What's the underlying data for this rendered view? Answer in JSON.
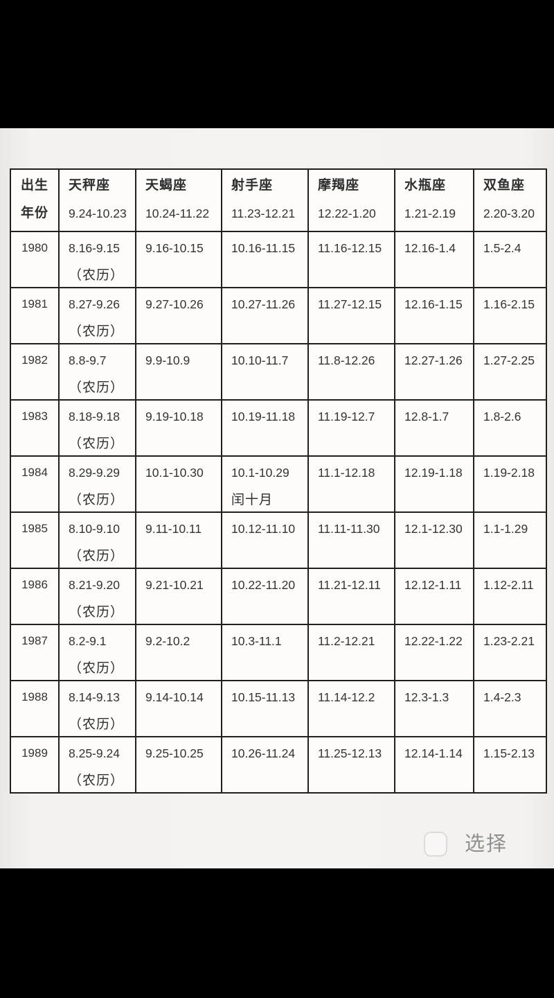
{
  "viewer": {
    "select_label": "选择"
  },
  "colors": {
    "letterbox": "#000000",
    "photo_background": "#f3f2f0",
    "table_background": "#fdfcfb",
    "table_border": "#1f1f1f",
    "text": "#2e2e2e",
    "select_text": "#8f8f8f",
    "checkbox_border": "#dddbd8"
  },
  "table": {
    "year_header_lines": [
      "出生",
      "年份"
    ],
    "columns": [
      {
        "name": "天秤座",
        "range": "9.24-10.23"
      },
      {
        "name": "天蝎座",
        "range": "10.24-11.22"
      },
      {
        "name": "射手座",
        "range": "11.23-12.21"
      },
      {
        "name": "摩羯座",
        "range": "12.22-1.20"
      },
      {
        "name": "水瓶座",
        "range": "1.21-2.19"
      },
      {
        "name": "双鱼座",
        "range": "2.20-3.20"
      }
    ],
    "rows": [
      {
        "year": "1980",
        "cells": [
          [
            "8.16-9.15",
            "（农历）"
          ],
          [
            "9.16-10.15"
          ],
          [
            "10.16-11.15"
          ],
          [
            "11.16-12.15"
          ],
          [
            "12.16-1.4"
          ],
          [
            "1.5-2.4"
          ]
        ]
      },
      {
        "year": "1981",
        "cells": [
          [
            "8.27-9.26",
            "（农历）"
          ],
          [
            "9.27-10.26"
          ],
          [
            "10.27-11.26"
          ],
          [
            "11.27-12.15"
          ],
          [
            "12.16-1.15"
          ],
          [
            "1.16-2.15"
          ]
        ]
      },
      {
        "year": "1982",
        "cells": [
          [
            "8.8-9.7",
            "（农历）"
          ],
          [
            "9.9-10.9"
          ],
          [
            "10.10-11.7"
          ],
          [
            "11.8-12.26"
          ],
          [
            "12.27-1.26"
          ],
          [
            "1.27-2.25"
          ]
        ]
      },
      {
        "year": "1983",
        "cells": [
          [
            "8.18-9.18",
            "（农历）"
          ],
          [
            "9.19-10.18"
          ],
          [
            "10.19-11.18"
          ],
          [
            "11.19-12.7"
          ],
          [
            "12.8-1.7"
          ],
          [
            "1.8-2.6"
          ]
        ]
      },
      {
        "year": "1984",
        "cells": [
          [
            "8.29-9.29",
            "（农历）"
          ],
          [
            "10.1-10.30"
          ],
          [
            "10.1-10.29",
            "闰十月"
          ],
          [
            "11.1-12.18"
          ],
          [
            "12.19-1.18"
          ],
          [
            "1.19-2.18"
          ]
        ]
      },
      {
        "year": "1985",
        "cells": [
          [
            "8.10-9.10",
            "（农历）"
          ],
          [
            "9.11-10.11"
          ],
          [
            "10.12-11.10"
          ],
          [
            "11.11-11.30"
          ],
          [
            "12.1-12.30"
          ],
          [
            "1.1-1.29"
          ]
        ]
      },
      {
        "year": "1986",
        "cells": [
          [
            "8.21-9.20",
            "（农历）"
          ],
          [
            "9.21-10.21"
          ],
          [
            "10.22-11.20"
          ],
          [
            "11.21-12.11"
          ],
          [
            "12.12-1.11"
          ],
          [
            "1.12-2.11"
          ]
        ]
      },
      {
        "year": "1987",
        "cells": [
          [
            "8.2-9.1",
            "（农历）"
          ],
          [
            "9.2-10.2"
          ],
          [
            "10.3-11.1"
          ],
          [
            "11.2-12.21"
          ],
          [
            "12.22-1.22"
          ],
          [
            "1.23-2.21"
          ]
        ]
      },
      {
        "year": "1988",
        "cells": [
          [
            "8.14-9.13",
            "（农历）"
          ],
          [
            "9.14-10.14"
          ],
          [
            "10.15-11.13"
          ],
          [
            "11.14-12.2"
          ],
          [
            "12.3-1.3"
          ],
          [
            "1.4-2.3"
          ]
        ]
      },
      {
        "year": "1989",
        "cells": [
          [
            "8.25-9.24",
            "（农历）"
          ],
          [
            "9.25-10.25"
          ],
          [
            "10.26-11.24"
          ],
          [
            "11.25-12.13"
          ],
          [
            "12.14-1.14"
          ],
          [
            "1.15-2.13"
          ]
        ]
      }
    ]
  }
}
